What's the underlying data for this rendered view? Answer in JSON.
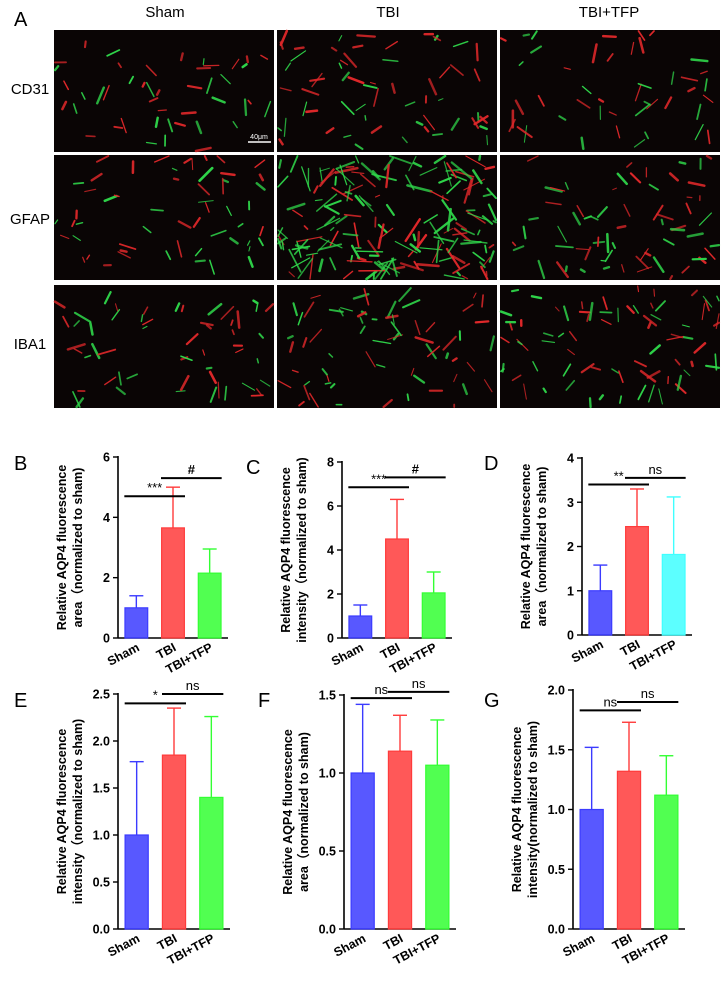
{
  "figure": {
    "panel_a_letter": "A",
    "column_labels": [
      "Sham",
      "TBI",
      "TBI+TFP"
    ],
    "row_labels": [
      "CD31",
      "GFAP",
      "IBA1"
    ],
    "scale_bar_label": "40μm",
    "colors": {
      "sham": "#3b3bff",
      "tbi": "#ff3b3b",
      "tfp": "#33ff33",
      "tfp_d": "#40ffff",
      "micro_bg": "#0a0505",
      "stain_red": "#e0282a",
      "stain_green": "#2fd64a"
    }
  },
  "chart_data": [
    {
      "panel": "B",
      "type": "bar",
      "categories": [
        "Sham",
        "TBI",
        "TBI+TFP"
      ],
      "values": [
        1.0,
        3.65,
        2.15
      ],
      "errors": [
        0.4,
        1.35,
        0.8
      ],
      "ylabel_lines": [
        "Relative AQP4 fluorescence",
        "area（normalized to sham)"
      ],
      "ylim": [
        0,
        6
      ],
      "yticks": [
        "0",
        "2",
        "4",
        "6"
      ],
      "ytick_values": [
        0,
        2,
        4,
        6
      ],
      "comparisons": [
        {
          "from": 0,
          "to": 1,
          "label": "***",
          "y": 4.7
        },
        {
          "from": 1,
          "to": 2,
          "label": "#",
          "y": 5.3
        }
      ]
    },
    {
      "panel": "C",
      "type": "bar",
      "categories": [
        "Sham",
        "TBI",
        "TBI+TFP"
      ],
      "values": [
        1.0,
        4.5,
        2.05
      ],
      "errors": [
        0.5,
        1.8,
        0.95
      ],
      "ylabel_lines": [
        "Relative AQP4 fluorescence",
        "intensity（normalized to sham)"
      ],
      "ylim": [
        0,
        8
      ],
      "yticks": [
        "0",
        "2",
        "4",
        "6",
        "8"
      ],
      "ytick_values": [
        0,
        2,
        4,
        6,
        8
      ],
      "comparisons": [
        {
          "from": 0,
          "to": 1,
          "label": "***",
          "y": 6.85
        },
        {
          "from": 1,
          "to": 2,
          "label": "#",
          "y": 7.3
        }
      ]
    },
    {
      "panel": "D",
      "type": "bar",
      "categories": [
        "Sham",
        "TBI",
        "TBI+TFP"
      ],
      "values": [
        1.0,
        2.45,
        1.82
      ],
      "errors": [
        0.58,
        0.85,
        1.3
      ],
      "ylabel_lines": [
        "Relative AQP4 fluorescence",
        "area（normalized to sham)"
      ],
      "ylim": [
        0,
        4
      ],
      "yticks": [
        "0",
        "1",
        "2",
        "3",
        "4"
      ],
      "ytick_values": [
        0,
        1,
        2,
        3,
        4
      ],
      "comparisons": [
        {
          "from": 0,
          "to": 1,
          "label": "**",
          "y": 3.4
        },
        {
          "from": 1,
          "to": 2,
          "label": "ns",
          "y": 3.55
        }
      ]
    },
    {
      "panel": "E",
      "type": "bar",
      "categories": [
        "Sham",
        "TBI",
        "TBI+TFP"
      ],
      "values": [
        1.0,
        1.85,
        1.4
      ],
      "errors": [
        0.78,
        0.5,
        0.86
      ],
      "ylabel_lines": [
        "Relative AQP4 fluorescence",
        "intensity（normalized to sham)"
      ],
      "ylim": [
        0,
        2.5
      ],
      "yticks": [
        "0.0",
        "0.5",
        "1.0",
        "1.5",
        "2.0",
        "2.5"
      ],
      "ytick_values": [
        0,
        0.5,
        1.0,
        1.5,
        2.0,
        2.5
      ],
      "comparisons": [
        {
          "from": 0,
          "to": 1,
          "label": "*",
          "y": 2.4
        },
        {
          "from": 1,
          "to": 2,
          "label": "ns",
          "y": 2.5
        }
      ]
    },
    {
      "panel": "F",
      "type": "bar",
      "categories": [
        "Sham",
        "TBI",
        "TBI+TFP"
      ],
      "values": [
        1.0,
        1.14,
        1.05
      ],
      "errors": [
        0.44,
        0.23,
        0.29
      ],
      "ylabel_lines": [
        "Relative AQP4 fluorescence",
        "area（normalized to sham)"
      ],
      "ylim": [
        0,
        1.5
      ],
      "yticks": [
        "0.0",
        "0.5",
        "1.0",
        "1.5"
      ],
      "ytick_values": [
        0,
        0.5,
        1.0,
        1.5
      ],
      "comparisons": [
        {
          "from": 0,
          "to": 1,
          "label": "ns",
          "y": 1.48
        },
        {
          "from": 1,
          "to": 2,
          "label": "ns",
          "y": 1.52
        }
      ]
    },
    {
      "panel": "G",
      "type": "bar",
      "categories": [
        "Sham",
        "TBI",
        "TBI+TFP"
      ],
      "values": [
        1.0,
        1.32,
        1.12
      ],
      "errors": [
        0.52,
        0.41,
        0.33
      ],
      "ylabel_lines": [
        "Relative AQP4 fluorescence",
        "intensity(normalized to sham)"
      ],
      "ylim": [
        0,
        2.0
      ],
      "yticks": [
        "0.0",
        "0.5",
        "1.0",
        "1.5",
        "2.0"
      ],
      "ytick_values": [
        0,
        0.5,
        1.0,
        1.5,
        2.0
      ],
      "comparisons": [
        {
          "from": 0,
          "to": 1,
          "label": "ns",
          "y": 1.83
        },
        {
          "from": 1,
          "to": 2,
          "label": "ns",
          "y": 1.9
        }
      ]
    }
  ]
}
